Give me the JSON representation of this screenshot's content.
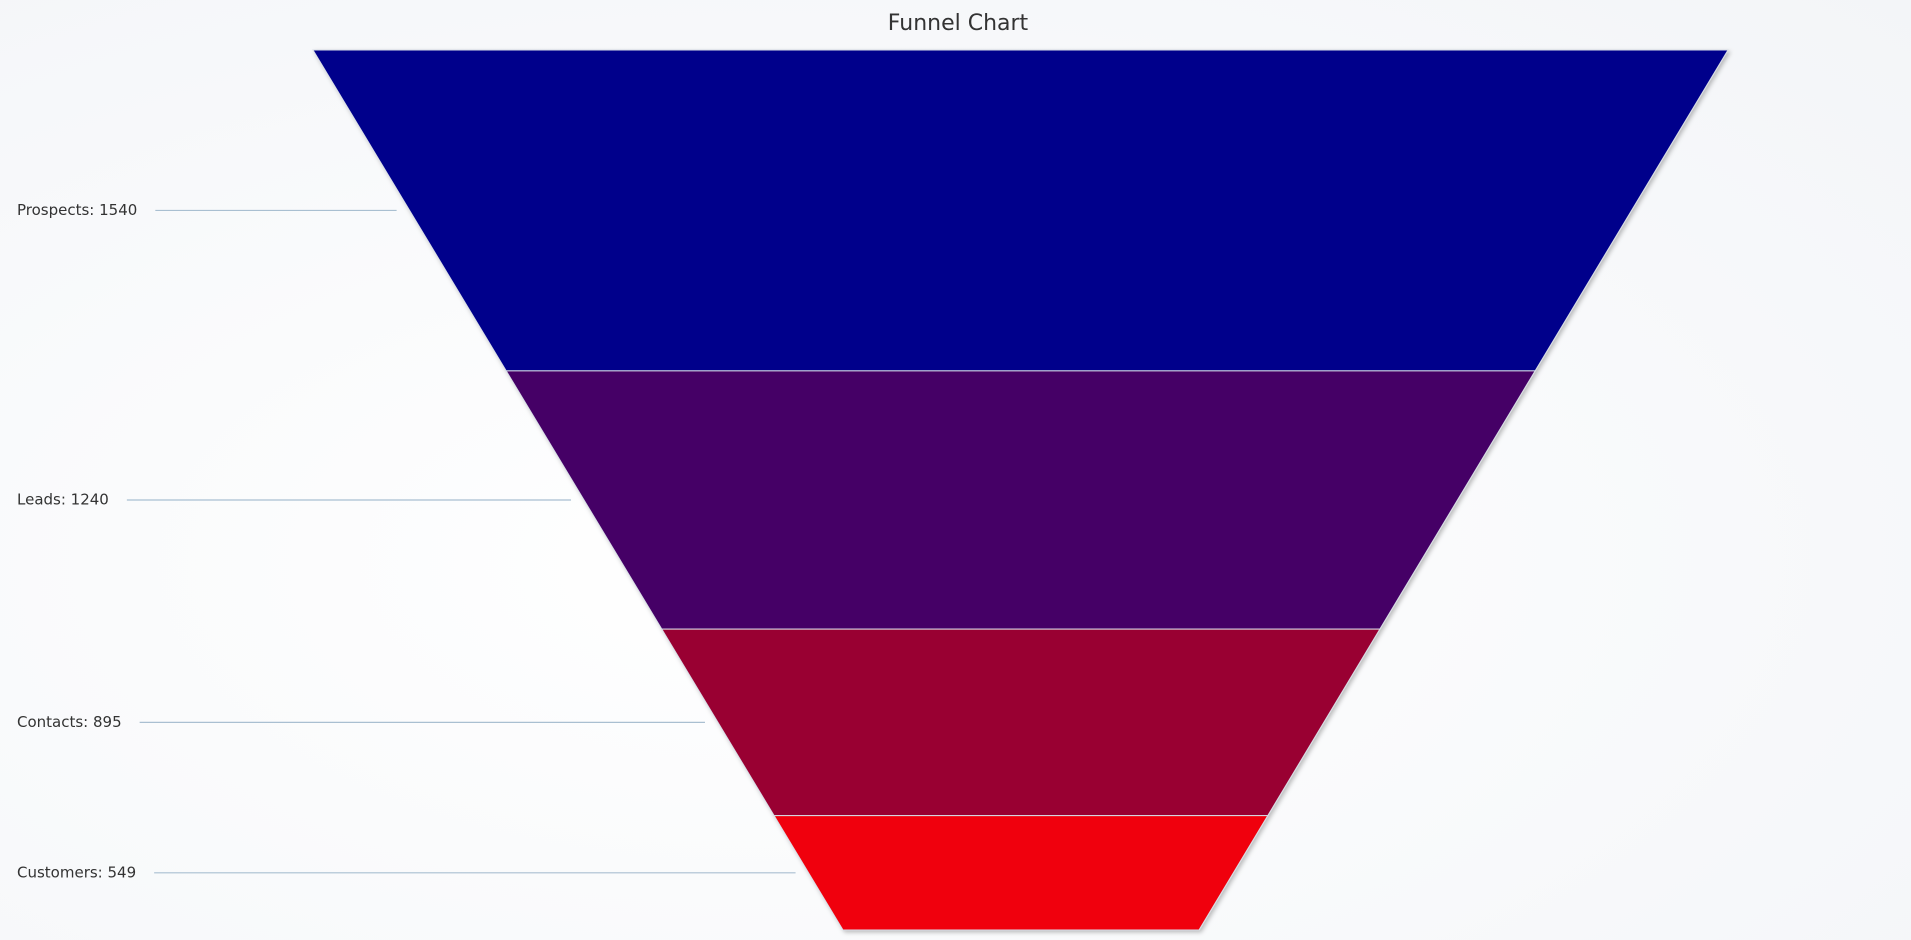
{
  "chart_data": {
    "type": "funnel",
    "title": "Funnel Chart",
    "values": [
      1540,
      1240,
      895,
      549
    ],
    "value_labels": [
      "Prospects: 1540",
      "Leads: 1240",
      "Contacts: 895",
      "Customers: 549"
    ],
    "colors": [
      "#00008b",
      "#440066",
      "#990033",
      "#f00008"
    ]
  }
}
